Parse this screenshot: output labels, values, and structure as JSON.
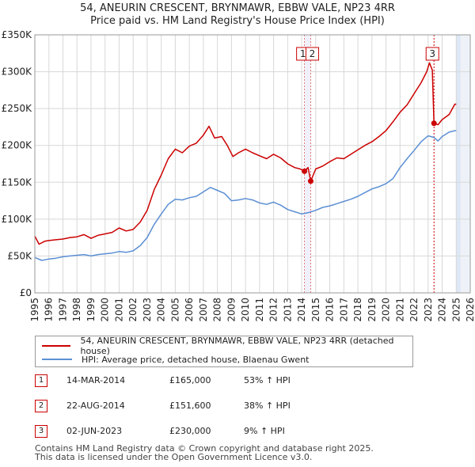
{
  "title": {
    "line1": "54, ANEURIN CRESCENT, BRYNMAWR, EBBW VALE, NP23 4RR",
    "line2": "Price paid vs. HM Land Registry's House Price Index (HPI)"
  },
  "colors": {
    "property": "#cc0000",
    "hpi": "#5b8fd4",
    "marker_border": "#cc0000",
    "shade": "#dde7f5"
  },
  "chart_data": {
    "type": "line",
    "title": "Price paid vs. HM Land Registry's House Price Index (HPI)",
    "xlim": [
      1995,
      2026
    ],
    "ylim": [
      0,
      350000
    ],
    "x_ticks": [
      1995,
      1996,
      1997,
      1998,
      1999,
      2000,
      2001,
      2002,
      2003,
      2004,
      2005,
      2006,
      2007,
      2008,
      2009,
      2010,
      2011,
      2012,
      2013,
      2014,
      2015,
      2016,
      2017,
      2018,
      2019,
      2020,
      2021,
      2022,
      2023,
      2024,
      2025,
      2026
    ],
    "y_ticks": [
      0,
      50000,
      100000,
      150000,
      200000,
      250000,
      300000,
      350000
    ],
    "y_tick_labels": [
      "£0",
      "£50K",
      "£100K",
      "£150K",
      "£200K",
      "£250K",
      "£300K",
      "£350K"
    ],
    "forecast_start": 2025.0,
    "series": [
      {
        "name": "54, ANEURIN CRESCENT, BRYNMAWR, EBBW VALE, NP23 4RR (detached house)",
        "points": [
          [
            1995.0,
            77000
          ],
          [
            1995.3,
            66000
          ],
          [
            1995.7,
            70000
          ],
          [
            1996.0,
            71000
          ],
          [
            1996.5,
            72000
          ],
          [
            1997.0,
            73000
          ],
          [
            1997.5,
            75000
          ],
          [
            1998.0,
            76000
          ],
          [
            1998.5,
            79000
          ],
          [
            1999.0,
            74000
          ],
          [
            1999.5,
            78000
          ],
          [
            2000.0,
            80000
          ],
          [
            2000.5,
            82000
          ],
          [
            2001.0,
            88000
          ],
          [
            2001.5,
            84000
          ],
          [
            2002.0,
            86000
          ],
          [
            2002.5,
            96000
          ],
          [
            2003.0,
            112000
          ],
          [
            2003.5,
            140000
          ],
          [
            2004.0,
            160000
          ],
          [
            2004.5,
            182000
          ],
          [
            2005.0,
            195000
          ],
          [
            2005.5,
            190000
          ],
          [
            2006.0,
            199000
          ],
          [
            2006.5,
            203000
          ],
          [
            2007.0,
            214000
          ],
          [
            2007.4,
            226000
          ],
          [
            2007.8,
            210000
          ],
          [
            2008.3,
            212000
          ],
          [
            2008.7,
            200000
          ],
          [
            2009.1,
            185000
          ],
          [
            2009.5,
            190000
          ],
          [
            2010.0,
            195000
          ],
          [
            2010.5,
            190000
          ],
          [
            2011.0,
            186000
          ],
          [
            2011.5,
            182000
          ],
          [
            2012.0,
            188000
          ],
          [
            2012.5,
            183000
          ],
          [
            2013.0,
            175000
          ],
          [
            2013.5,
            170000
          ],
          [
            2013.9,
            168000
          ],
          [
            2014.2,
            165000
          ],
          [
            2014.45,
            170000
          ],
          [
            2014.64,
            151600
          ],
          [
            2015.0,
            168000
          ],
          [
            2015.5,
            172000
          ],
          [
            2016.0,
            178000
          ],
          [
            2016.5,
            183000
          ],
          [
            2017.0,
            182000
          ],
          [
            2017.5,
            188000
          ],
          [
            2018.0,
            194000
          ],
          [
            2018.5,
            200000
          ],
          [
            2019.0,
            205000
          ],
          [
            2019.5,
            212000
          ],
          [
            2020.0,
            220000
          ],
          [
            2020.5,
            232000
          ],
          [
            2021.0,
            245000
          ],
          [
            2021.5,
            255000
          ],
          [
            2022.0,
            270000
          ],
          [
            2022.5,
            285000
          ],
          [
            2022.9,
            300000
          ],
          [
            2023.1,
            312000
          ],
          [
            2023.3,
            302000
          ],
          [
            2023.42,
            230000
          ],
          [
            2023.7,
            228000
          ],
          [
            2024.0,
            235000
          ],
          [
            2024.5,
            242000
          ],
          [
            2024.9,
            256000
          ],
          [
            2025.0,
            256000
          ]
        ]
      },
      {
        "name": "HPI: Average price, detached house, Blaenau Gwent",
        "points": [
          [
            1995.0,
            48000
          ],
          [
            1995.5,
            44000
          ],
          [
            1996.0,
            46000
          ],
          [
            1996.5,
            47000
          ],
          [
            1997.0,
            49000
          ],
          [
            1997.5,
            50000
          ],
          [
            1998.0,
            51000
          ],
          [
            1998.5,
            52000
          ],
          [
            1999.0,
            50000
          ],
          [
            1999.5,
            52000
          ],
          [
            2000.0,
            53000
          ],
          [
            2000.5,
            54000
          ],
          [
            2001.0,
            56000
          ],
          [
            2001.5,
            55000
          ],
          [
            2002.0,
            57000
          ],
          [
            2002.5,
            64000
          ],
          [
            2003.0,
            75000
          ],
          [
            2003.5,
            93000
          ],
          [
            2004.0,
            107000
          ],
          [
            2004.5,
            120000
          ],
          [
            2005.0,
            127000
          ],
          [
            2005.5,
            126000
          ],
          [
            2006.0,
            129000
          ],
          [
            2006.5,
            131000
          ],
          [
            2007.0,
            137000
          ],
          [
            2007.5,
            143000
          ],
          [
            2008.0,
            139000
          ],
          [
            2008.5,
            135000
          ],
          [
            2009.0,
            125000
          ],
          [
            2009.5,
            126000
          ],
          [
            2010.0,
            128000
          ],
          [
            2010.5,
            126000
          ],
          [
            2011.0,
            122000
          ],
          [
            2011.5,
            120000
          ],
          [
            2012.0,
            123000
          ],
          [
            2012.5,
            119000
          ],
          [
            2013.0,
            113000
          ],
          [
            2013.5,
            110000
          ],
          [
            2014.0,
            107000
          ],
          [
            2014.5,
            109000
          ],
          [
            2015.0,
            112000
          ],
          [
            2015.5,
            116000
          ],
          [
            2016.0,
            118000
          ],
          [
            2016.5,
            121000
          ],
          [
            2017.0,
            124000
          ],
          [
            2017.5,
            127000
          ],
          [
            2018.0,
            131000
          ],
          [
            2018.5,
            136000
          ],
          [
            2019.0,
            141000
          ],
          [
            2019.5,
            144000
          ],
          [
            2020.0,
            148000
          ],
          [
            2020.5,
            155000
          ],
          [
            2021.0,
            170000
          ],
          [
            2021.5,
            182000
          ],
          [
            2022.0,
            193000
          ],
          [
            2022.5,
            205000
          ],
          [
            2023.0,
            213000
          ],
          [
            2023.4,
            211000
          ],
          [
            2023.7,
            206000
          ],
          [
            2024.0,
            212000
          ],
          [
            2024.5,
            218000
          ],
          [
            2024.9,
            220000
          ],
          [
            2025.0,
            220000
          ]
        ]
      }
    ],
    "markers": [
      {
        "label": "1",
        "x": 2014.2,
        "y": 165000
      },
      {
        "label": "2",
        "x": 2014.64,
        "y": 151600
      },
      {
        "label": "3",
        "x": 2023.42,
        "y": 230000
      }
    ]
  },
  "legend": {
    "property_label": "54, ANEURIN CRESCENT, BRYNMAWR, EBBW VALE, NP23 4RR (detached house)",
    "hpi_label": "HPI: Average price, detached house, Blaenau Gwent"
  },
  "transactions": [
    {
      "num": "1",
      "date": "14-MAR-2014",
      "price": "£165,000",
      "hpi": "53% ↑ HPI"
    },
    {
      "num": "2",
      "date": "22-AUG-2014",
      "price": "£151,600",
      "hpi": "38% ↑ HPI"
    },
    {
      "num": "3",
      "date": "02-JUN-2023",
      "price": "£230,000",
      "hpi": "9% ↑ HPI"
    }
  ],
  "footer": {
    "line1": "Contains HM Land Registry data © Crown copyright and database right 2025.",
    "line2": "This data is licensed under the Open Government Licence v3.0."
  }
}
